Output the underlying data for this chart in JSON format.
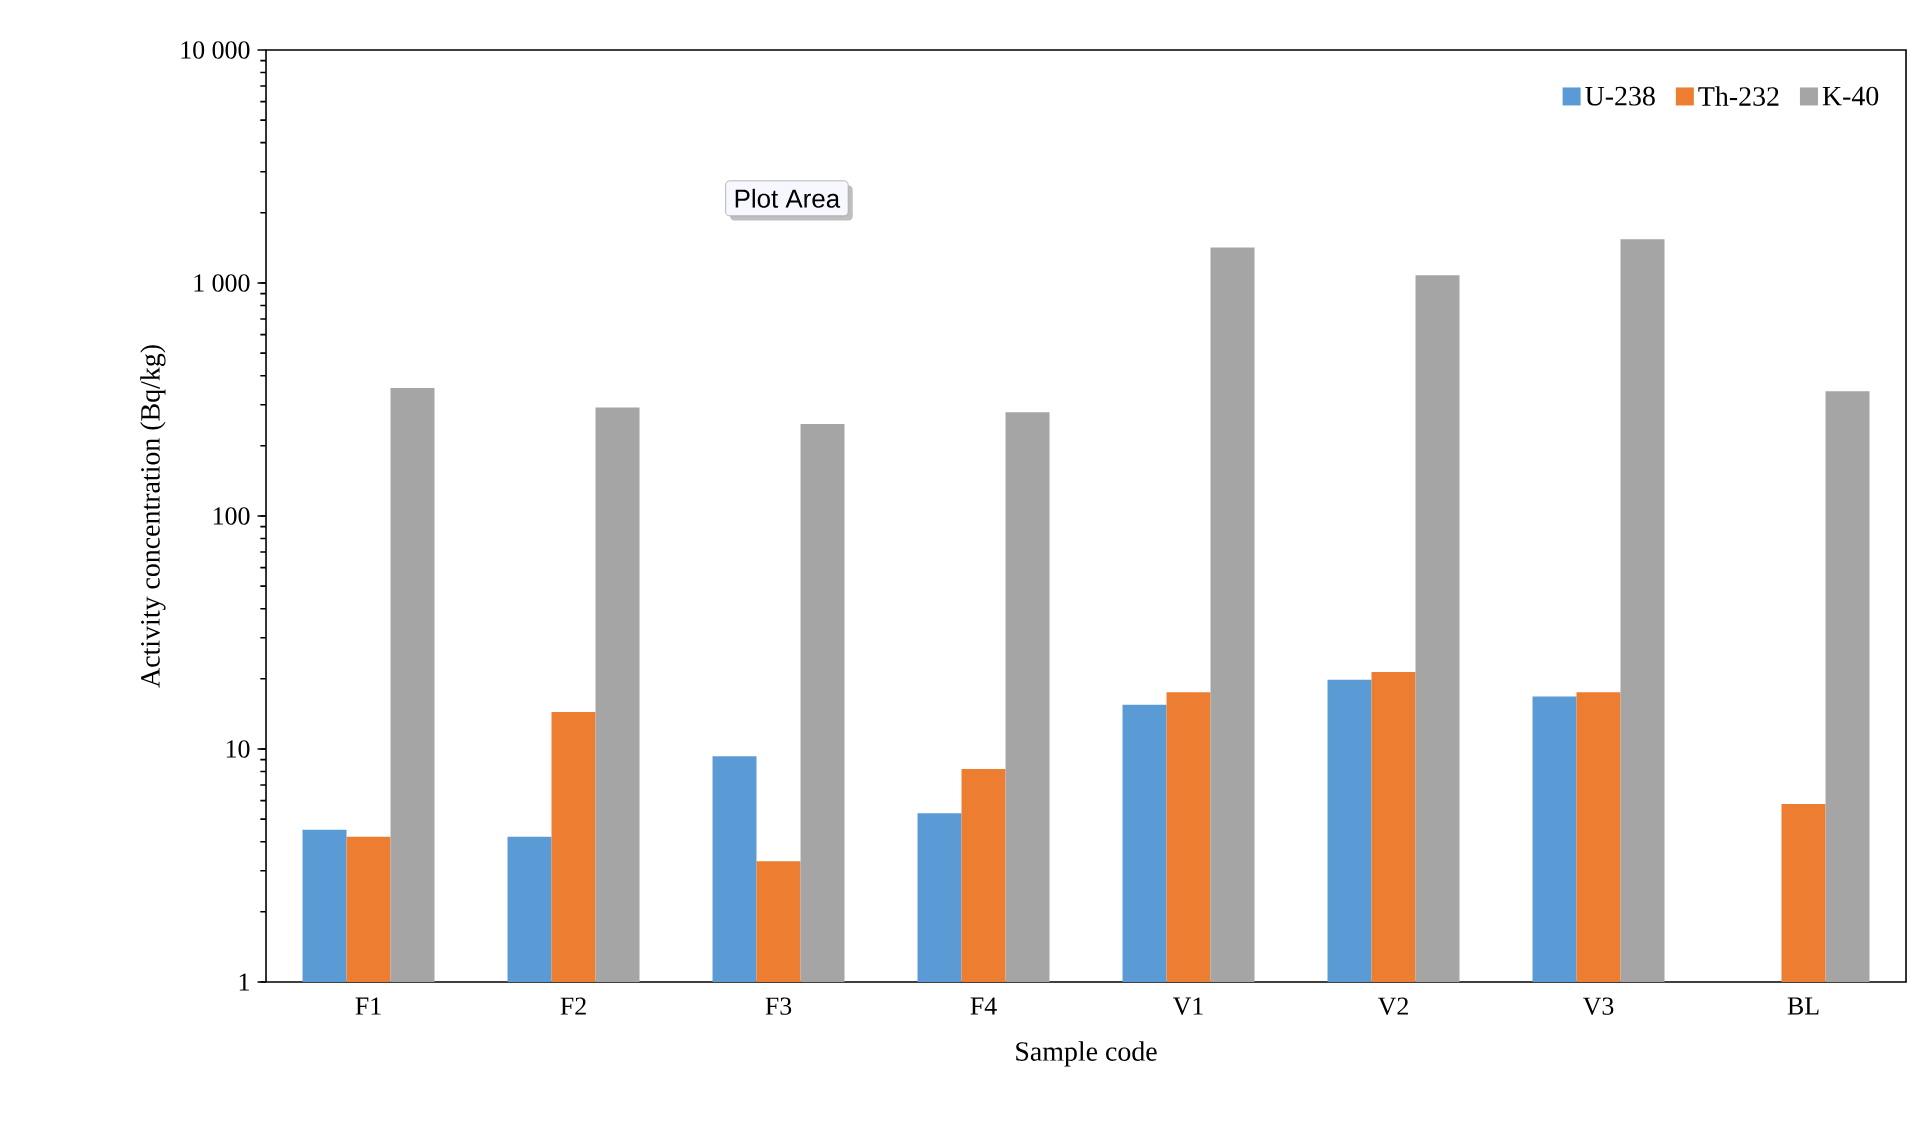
{
  "chart_data": {
    "type": "bar",
    "xlabel": "Sample code",
    "ylabel": "Activity concentration (Bq/kg)",
    "categories": [
      "F1",
      "F2",
      "F3",
      "F4",
      "V1",
      "V2",
      "V3",
      "BL"
    ],
    "series": [
      {
        "name": "U-238",
        "color": "#5b9bd5",
        "values": [
          4.5,
          4.2,
          9.3,
          5.3,
          15.5,
          19.8,
          16.8,
          null
        ]
      },
      {
        "name": "Th-232",
        "color": "#ed7d31",
        "values": [
          4.2,
          14.4,
          3.3,
          8.2,
          17.5,
          21.4,
          17.5,
          5.8
        ]
      },
      {
        "name": "K-40",
        "color": "#a5a5a5",
        "values": [
          354,
          292,
          248,
          279,
          1420,
          1080,
          1540,
          343
        ]
      }
    ],
    "log": "y",
    "ylim": [
      1,
      10000
    ],
    "yticks": [
      1,
      10,
      100,
      {
        "value": 1000,
        "label": "1 000"
      },
      {
        "value": 10000,
        "label": "10 000"
      }
    ],
    "legend": "top right",
    "grid": false,
    "annotations": [
      "Plot Area"
    ]
  }
}
